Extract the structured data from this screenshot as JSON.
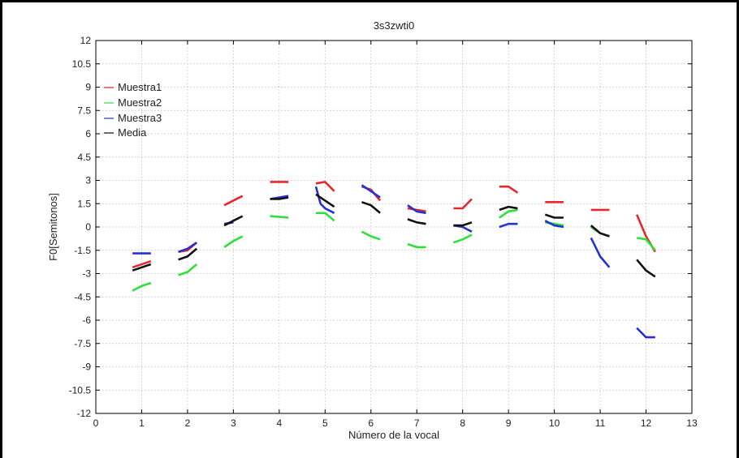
{
  "chart_data": {
    "type": "line",
    "title": "3s3zwti0",
    "xlabel": "Número de la vocal",
    "ylabel": "F0[Semitonos]",
    "xlim": [
      0,
      13
    ],
    "ylim": [
      -12,
      12
    ],
    "xticks": [
      0,
      1,
      2,
      3,
      4,
      5,
      6,
      7,
      8,
      9,
      10,
      11,
      12,
      13
    ],
    "yticks": [
      -12,
      -10.5,
      -9,
      -7.5,
      -6,
      -4.5,
      -3,
      -1.5,
      0,
      1.5,
      3,
      4.5,
      6,
      7.5,
      9,
      10.5,
      12
    ],
    "grid": true,
    "legend_position": "top-left",
    "series": [
      {
        "name": "Muestra1",
        "color": "#e8262b",
        "segments": [
          [
            [
              0.8,
              -2.6
            ],
            [
              1.2,
              -2.2
            ]
          ],
          [
            [
              1.8,
              -1.6
            ],
            [
              2.0,
              -1.5
            ],
            [
              2.2,
              -1.0
            ]
          ],
          [
            [
              2.8,
              1.4
            ],
            [
              3.2,
              2.0
            ]
          ],
          [
            [
              3.8,
              2.9
            ],
            [
              4.2,
              2.9
            ]
          ],
          [
            [
              4.8,
              2.8
            ],
            [
              5.0,
              2.9
            ],
            [
              5.2,
              2.3
            ]
          ],
          [
            [
              5.8,
              2.6
            ],
            [
              6.0,
              2.4
            ],
            [
              6.2,
              1.7
            ]
          ],
          [
            [
              6.8,
              1.2
            ],
            [
              7.0,
              1.1
            ],
            [
              7.2,
              1.0
            ]
          ],
          [
            [
              7.8,
              1.2
            ],
            [
              8.0,
              1.2
            ],
            [
              8.2,
              1.8
            ]
          ],
          [
            [
              8.8,
              2.6
            ],
            [
              9.0,
              2.6
            ],
            [
              9.2,
              2.2
            ]
          ],
          [
            [
              9.8,
              1.6
            ],
            [
              10.2,
              1.6
            ]
          ],
          [
            [
              10.8,
              1.1
            ],
            [
              11.2,
              1.1
            ]
          ],
          [
            [
              11.8,
              0.8
            ],
            [
              12.0,
              -0.6
            ],
            [
              12.2,
              -1.6
            ]
          ]
        ]
      },
      {
        "name": "Muestra2",
        "color": "#2ee03a",
        "segments": [
          [
            [
              0.8,
              -4.1
            ],
            [
              1.0,
              -3.8
            ],
            [
              1.2,
              -3.6
            ]
          ],
          [
            [
              1.8,
              -3.1
            ],
            [
              2.0,
              -2.9
            ],
            [
              2.2,
              -2.4
            ]
          ],
          [
            [
              2.8,
              -1.3
            ],
            [
              3.0,
              -0.9
            ],
            [
              3.2,
              -0.6
            ]
          ],
          [
            [
              3.8,
              0.7
            ],
            [
              4.2,
              0.6
            ]
          ],
          [
            [
              4.8,
              0.9
            ],
            [
              5.0,
              0.9
            ],
            [
              5.2,
              0.4
            ]
          ],
          [
            [
              5.8,
              -0.3
            ],
            [
              6.0,
              -0.6
            ],
            [
              6.2,
              -0.8
            ]
          ],
          [
            [
              6.8,
              -1.1
            ],
            [
              7.0,
              -1.3
            ],
            [
              7.2,
              -1.3
            ]
          ],
          [
            [
              7.8,
              -1.0
            ],
            [
              8.0,
              -0.8
            ],
            [
              8.2,
              -0.5
            ]
          ],
          [
            [
              8.8,
              0.6
            ],
            [
              9.0,
              1.0
            ],
            [
              9.2,
              1.1
            ]
          ],
          [
            [
              9.8,
              0.3
            ],
            [
              10.0,
              0.2
            ],
            [
              10.2,
              0.1
            ]
          ],
          [
            [
              10.8,
              0.0
            ],
            [
              11.0,
              -0.4
            ],
            [
              11.2,
              -0.6
            ]
          ],
          [
            [
              11.8,
              -0.7
            ],
            [
              12.0,
              -0.8
            ],
            [
              12.2,
              -1.5
            ]
          ]
        ]
      },
      {
        "name": "Muestra3",
        "color": "#2431d4",
        "segments": [
          [
            [
              0.8,
              -1.7
            ],
            [
              1.2,
              -1.7
            ]
          ],
          [
            [
              1.8,
              -1.6
            ],
            [
              2.0,
              -1.4
            ],
            [
              2.2,
              -1.0
            ]
          ],
          [
            [
              2.8,
              0.2
            ],
            [
              3.0,
              0.3
            ]
          ],
          [
            [
              3.8,
              1.8
            ],
            [
              4.0,
              1.9
            ],
            [
              4.2,
              2.0
            ]
          ],
          [
            [
              4.8,
              2.6
            ],
            [
              4.9,
              1.5
            ],
            [
              5.0,
              1.2
            ],
            [
              5.2,
              0.9
            ]
          ],
          [
            [
              5.8,
              2.7
            ],
            [
              6.0,
              2.3
            ],
            [
              6.2,
              1.9
            ]
          ],
          [
            [
              6.8,
              1.4
            ],
            [
              7.0,
              1.0
            ],
            [
              7.2,
              0.9
            ]
          ],
          [
            [
              7.8,
              0.1
            ],
            [
              8.0,
              0.0
            ],
            [
              8.2,
              -0.3
            ]
          ],
          [
            [
              8.8,
              0.0
            ],
            [
              9.0,
              0.2
            ],
            [
              9.2,
              0.2
            ]
          ],
          [
            [
              9.8,
              0.4
            ],
            [
              10.0,
              0.1
            ],
            [
              10.2,
              0.0
            ]
          ],
          [
            [
              10.8,
              -0.7
            ],
            [
              11.0,
              -1.9
            ],
            [
              11.2,
              -2.6
            ]
          ],
          [
            [
              11.8,
              -6.5
            ],
            [
              12.0,
              -7.1
            ],
            [
              12.2,
              -7.1
            ]
          ]
        ]
      },
      {
        "name": "Media",
        "color": "#111111",
        "segments": [
          [
            [
              0.8,
              -2.8
            ],
            [
              1.0,
              -2.6
            ],
            [
              1.2,
              -2.4
            ]
          ],
          [
            [
              1.8,
              -2.1
            ],
            [
              2.0,
              -1.9
            ],
            [
              2.2,
              -1.4
            ]
          ],
          [
            [
              2.8,
              0.1
            ],
            [
              3.0,
              0.4
            ],
            [
              3.2,
              0.7
            ]
          ],
          [
            [
              3.8,
              1.8
            ],
            [
              4.0,
              1.8
            ],
            [
              4.2,
              1.9
            ]
          ],
          [
            [
              4.8,
              2.1
            ],
            [
              5.0,
              1.7
            ],
            [
              5.2,
              1.3
            ]
          ],
          [
            [
              5.8,
              1.6
            ],
            [
              6.0,
              1.4
            ],
            [
              6.2,
              0.9
            ]
          ],
          [
            [
              6.8,
              0.5
            ],
            [
              7.0,
              0.3
            ],
            [
              7.2,
              0.2
            ]
          ],
          [
            [
              7.8,
              0.1
            ],
            [
              8.0,
              0.1
            ],
            [
              8.2,
              0.3
            ]
          ],
          [
            [
              8.8,
              1.1
            ],
            [
              9.0,
              1.3
            ],
            [
              9.2,
              1.2
            ]
          ],
          [
            [
              9.8,
              0.8
            ],
            [
              10.0,
              0.6
            ],
            [
              10.2,
              0.6
            ]
          ],
          [
            [
              10.8,
              0.1
            ],
            [
              11.0,
              -0.4
            ],
            [
              11.2,
              -0.6
            ]
          ],
          [
            [
              11.8,
              -2.1
            ],
            [
              12.0,
              -2.8
            ],
            [
              12.2,
              -3.2
            ]
          ]
        ]
      }
    ]
  }
}
